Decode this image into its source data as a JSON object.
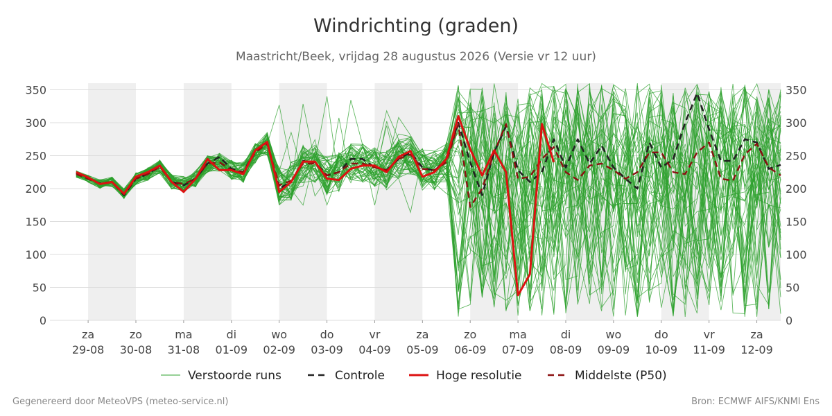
{
  "title": "Windrichting (graden)",
  "subtitle": "Maastricht/Beek, vrijdag 28 augustus 2026 (Versie vr 12 uur)",
  "footer": {
    "left": "Gegenereerd door MeteoVPS (meteo-service.nl)",
    "right": "Bron: ECMWF AIFS/KNMI Ens"
  },
  "colors": {
    "members": "#2ca02c",
    "control": "#222222",
    "high_res": "#dd1111",
    "median": "#8b1010",
    "weekend_band": "#efefef",
    "grid": "#dddddd"
  },
  "chart_data": {
    "type": "line",
    "x_unit": "dag (index vanaf 29-08, 0 = middernacht)",
    "xlim": [
      -0.8,
      14.5
    ],
    "ylim": [
      0,
      360
    ],
    "yticks": [
      0,
      50,
      100,
      150,
      200,
      250,
      300,
      350
    ],
    "x_ticks": [
      {
        "day": "za",
        "date": "29-08"
      },
      {
        "day": "zo",
        "date": "30-08"
      },
      {
        "day": "ma",
        "date": "31-08"
      },
      {
        "day": "di",
        "date": "01-09"
      },
      {
        "day": "wo",
        "date": "02-09"
      },
      {
        "day": "do",
        "date": "03-09"
      },
      {
        "day": "vr",
        "date": "04-09"
      },
      {
        "day": "za",
        "date": "05-09"
      },
      {
        "day": "zo",
        "date": "06-09"
      },
      {
        "day": "ma",
        "date": "07-09"
      },
      {
        "day": "di",
        "date": "08-09"
      },
      {
        "day": "wo",
        "date": "09-09"
      },
      {
        "day": "do",
        "date": "10-09"
      },
      {
        "day": "vr",
        "date": "11-09"
      },
      {
        "day": "za",
        "date": "12-09"
      }
    ],
    "shaded_day_ranges": [
      [
        0,
        1
      ],
      [
        2,
        3
      ],
      [
        4,
        5
      ],
      [
        6,
        7
      ],
      [
        8,
        9
      ],
      [
        10,
        11
      ],
      [
        12,
        13
      ],
      [
        14,
        14.5
      ]
    ],
    "legend_position": "bottom",
    "legend": {
      "members": "Verstoorde runs",
      "control": "Controle",
      "high_res": "Hoge resolutie",
      "median": "Middelste (P50)"
    },
    "series": [
      {
        "key": "control",
        "x": [
          -0.25,
          0,
          0.25,
          0.5,
          0.75,
          1,
          1.25,
          1.5,
          1.75,
          2,
          2.25,
          2.5,
          2.75,
          3,
          3.25,
          3.5,
          3.75,
          4,
          4.25,
          4.5,
          4.75,
          5,
          5.25,
          5.5,
          5.75,
          6,
          6.25,
          6.5,
          6.75,
          7,
          7.25,
          7.5,
          7.75,
          8,
          8.25,
          8.5,
          8.75,
          9,
          9.25,
          9.5,
          9.75,
          10,
          10.25,
          10.5,
          10.75,
          11,
          11.25,
          11.5,
          11.75,
          12,
          12.25,
          12.5,
          12.75,
          13,
          13.25,
          13.5,
          13.75,
          14,
          14.25,
          14.5
        ],
        "values": [
          224,
          215,
          208,
          210,
          190,
          215,
          222,
          235,
          210,
          205,
          215,
          238,
          248,
          230,
          225,
          258,
          270,
          200,
          210,
          242,
          240,
          220,
          225,
          245,
          245,
          232,
          228,
          245,
          255,
          232,
          227,
          245,
          300,
          240,
          190,
          255,
          295,
          228,
          210,
          225,
          275,
          232,
          275,
          238,
          265,
          232,
          215,
          200,
          270,
          232,
          245,
          300,
          345,
          290,
          242,
          242,
          275,
          270,
          230,
          236
        ]
      },
      {
        "key": "high_res",
        "x": [
          -0.25,
          0,
          0.25,
          0.5,
          0.75,
          1,
          1.25,
          1.5,
          1.75,
          2,
          2.25,
          2.5,
          2.75,
          3,
          3.25,
          3.5,
          3.75,
          4,
          4.25,
          4.5,
          4.75,
          5,
          5.25,
          5.5,
          5.75,
          6,
          6.25,
          6.5,
          6.75,
          7,
          7.25,
          7.5,
          7.75,
          8,
          8.25,
          8.5,
          8.75,
          9,
          9.25,
          9.5,
          9.75
        ],
        "values": [
          225,
          217,
          207,
          210,
          192,
          218,
          225,
          235,
          210,
          195,
          215,
          245,
          228,
          228,
          222,
          258,
          271,
          195,
          210,
          241,
          241,
          215,
          213,
          230,
          235,
          235,
          225,
          248,
          257,
          218,
          225,
          245,
          310,
          260,
          220,
          258,
          225,
          38,
          70,
          298,
          240
        ]
      },
      {
        "key": "median",
        "x": [
          -0.25,
          0,
          0.25,
          0.5,
          0.75,
          1,
          1.25,
          1.5,
          1.75,
          2,
          2.25,
          2.5,
          2.75,
          3,
          3.25,
          3.5,
          3.75,
          4,
          4.25,
          4.5,
          4.75,
          5,
          5.25,
          5.5,
          5.75,
          6,
          6.25,
          6.5,
          6.75,
          7,
          7.25,
          7.5,
          7.75,
          8,
          8.25,
          8.5,
          8.75,
          9,
          9.25,
          9.5,
          9.75,
          10,
          10.25,
          10.5,
          10.75,
          11,
          11.25,
          11.5,
          11.75,
          12,
          12.25,
          12.5,
          12.75,
          13,
          13.25,
          13.5,
          13.75,
          14,
          14.25,
          14.5
        ],
        "values": [
          222,
          215,
          207,
          210,
          192,
          215,
          222,
          233,
          210,
          207,
          215,
          238,
          240,
          228,
          225,
          255,
          268,
          205,
          212,
          238,
          238,
          220,
          225,
          238,
          238,
          232,
          228,
          245,
          252,
          230,
          228,
          240,
          298,
          172,
          200,
          255,
          298,
          215,
          218,
          245,
          263,
          225,
          213,
          235,
          238,
          228,
          215,
          225,
          255,
          255,
          225,
          222,
          255,
          270,
          215,
          212,
          252,
          268,
          232,
          220
        ]
      }
    ]
  }
}
